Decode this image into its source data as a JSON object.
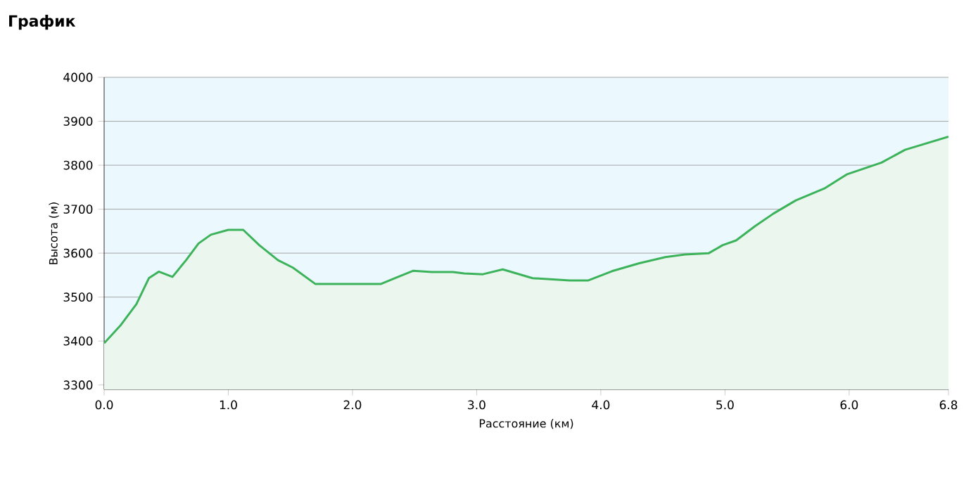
{
  "chart_data": {
    "type": "area",
    "title": "График",
    "xlabel": "Расстояние   (км)",
    "ylabel": "Высота (м)",
    "x": [
      0,
      0.13,
      0.26,
      0.36,
      0.44,
      0.55,
      0.66,
      0.76,
      0.86,
      1.0,
      1.12,
      1.25,
      1.4,
      1.52,
      1.7,
      2.23,
      2.34,
      2.49,
      2.64,
      2.81,
      2.9,
      3.05,
      3.21,
      3.45,
      3.75,
      3.9,
      4.09,
      4.31,
      4.52,
      4.68,
      4.87,
      4.98,
      5.09,
      5.24,
      5.39,
      5.57,
      5.8,
      5.98,
      6.26,
      6.45,
      6.8
    ],
    "series": [
      {
        "color": "#3cb35a",
        "values": [
          3395,
          3435,
          3484,
          3543,
          3558,
          3546,
          3584,
          3622,
          3642,
          3653,
          3653,
          3618,
          3584,
          3567,
          3530,
          3530,
          3543,
          3560,
          3557,
          3557,
          3554,
          3552,
          3563,
          3543,
          3538,
          3538,
          3559,
          3577,
          3591,
          3597,
          3600,
          3618,
          3629,
          3661,
          3690,
          3720,
          3747,
          3779,
          3806,
          3835,
          3865
        ]
      }
    ],
    "xlim": [
      0,
      6.8
    ],
    "ylim": [
      3290,
      4000
    ],
    "xticks": [
      {
        "value": 0,
        "label": "0.0"
      },
      {
        "value": 1,
        "label": "1.0"
      },
      {
        "value": 2,
        "label": "2.0"
      },
      {
        "value": 3,
        "label": "3.0"
      },
      {
        "value": 4,
        "label": "4.0"
      },
      {
        "value": 5,
        "label": "5.0"
      },
      {
        "value": 6,
        "label": "6.0"
      },
      {
        "value": 6.8,
        "label": "6.8"
      }
    ],
    "yticks": [
      3300,
      3400,
      3500,
      3600,
      3700,
      3800,
      3900,
      4000
    ],
    "grid": "y"
  }
}
